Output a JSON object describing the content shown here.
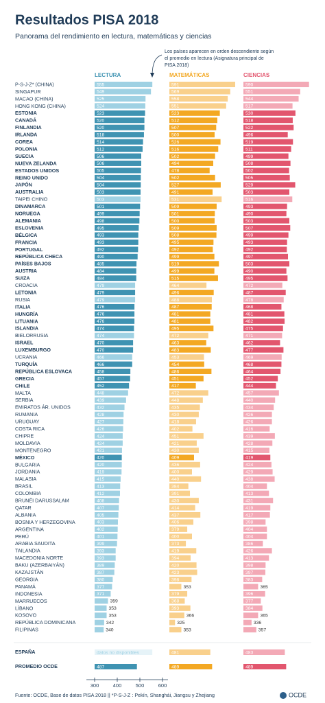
{
  "chart_data": {
    "type": "bar",
    "title": "Resultados PISA 2018",
    "subtitle": "Panorama del rendimiento en lectura, matemáticas y ciencias",
    "note": [
      "Los países aparecen en orden descendiente según",
      "el promedio en lectura (Asignatura principal de",
      "PISA 2018)"
    ],
    "categories": [
      "P-S-J-Z* (CHINA)",
      "SINGAPUR",
      "MACAO (CHINA)",
      "HONG KONG (CHINA)",
      "ESTONIA",
      "CANADÁ",
      "FINLANDIA",
      "IRLANDA",
      "COREA",
      "POLONIA",
      "SUECIA",
      "NUEVA ZELANDA",
      "ESTADOS UNIDOS",
      "REINO UNIDO",
      "JAPÓN",
      "AUSTRALIA",
      "TAIPEI CHINO",
      "DINAMARCA",
      "NORUEGA",
      "ALEMANIA",
      "ESLOVENIA",
      "BÉLGICA",
      "FRANCIA",
      "PORTUGAL",
      "REPÚBLICA CHECA",
      "PAÍSES BAJOS",
      "AUSTRIA",
      "SUIZA",
      "CROACIA",
      "LETONIA",
      "RUSIA",
      "ITALIA",
      "HUNGRÍA",
      "LITUANIA",
      "ISLANDIA",
      "BIELORRUSIA",
      "ISRAEL",
      "LUXEMBURGO",
      "UCRANIA",
      "TURQUÍA",
      "REPÚBLICA ESLOVACA",
      "GRECIA",
      "CHILE",
      "MALTA",
      "SERBIA",
      "EMIRATOS ÁR. UNIDOS",
      "RUMANIA",
      "URUGUAY",
      "COSTA RICA",
      "CHIPRE",
      "MOLDAVIA",
      "MONTENEGRO",
      "MÉXICO",
      "BULGARIA",
      "JORDANIA",
      "MALASIA",
      "BRASIL",
      "COLOMBIA",
      "BRUNÉI DARUSSALAM",
      "QATAR",
      "ALBANIA",
      "BOSNIA Y HERZEGOVINA",
      "ARGENTINA",
      "PERÚ",
      "ARABIA SAUDITA",
      "TAILANDIA",
      "MACEDONIA NORTE",
      "BAKU (AZERBAIYÁN)",
      "KAZAJSTÁN",
      "GEORGIA",
      "PANAMÁ",
      "INDONESIA",
      "MARRUECOS",
      "LÍBANO",
      "KOSOVO",
      "REPÚBLICA DOMINICANA",
      "FILIPINAS"
    ],
    "oecd": [
      false,
      false,
      false,
      false,
      true,
      true,
      true,
      true,
      true,
      true,
      true,
      true,
      true,
      true,
      true,
      true,
      false,
      true,
      true,
      true,
      true,
      true,
      true,
      true,
      true,
      true,
      true,
      true,
      false,
      true,
      false,
      true,
      true,
      true,
      true,
      false,
      true,
      true,
      false,
      true,
      true,
      true,
      true,
      false,
      false,
      false,
      false,
      false,
      false,
      false,
      false,
      false,
      true,
      false,
      false,
      false,
      false,
      false,
      false,
      false,
      false,
      false,
      false,
      false,
      false,
      false,
      false,
      false,
      false,
      false,
      false,
      false,
      false,
      false,
      false,
      false,
      false
    ],
    "series": [
      {
        "name": "LECTURA",
        "color": "#3f93b2",
        "light_color": "#9fd1e3",
        "values": [
          555,
          549,
          525,
          524,
          523,
          520,
          520,
          518,
          514,
          512,
          506,
          506,
          505,
          504,
          504,
          503,
          503,
          501,
          499,
          498,
          495,
          493,
          493,
          492,
          490,
          485,
          484,
          484,
          479,
          479,
          479,
          476,
          476,
          476,
          474,
          474,
          470,
          470,
          466,
          466,
          458,
          457,
          452,
          448,
          439,
          432,
          428,
          427,
          426,
          424,
          424,
          421,
          420,
          420,
          419,
          415,
          413,
          412,
          408,
          407,
          405,
          403,
          402,
          401,
          399,
          393,
          393,
          389,
          387,
          380,
          377,
          371,
          359,
          353,
          353,
          342,
          340
        ]
      },
      {
        "name": "MATEMÁTICAS",
        "color": "#f3a823",
        "light_color": "#f9d08c",
        "values": [
          591,
          569,
          558,
          551,
          523,
          512,
          507,
          500,
          526,
          516,
          502,
          494,
          478,
          502,
          527,
          491,
          531,
          509,
          501,
          500,
          509,
          508,
          495,
          492,
          499,
          519,
          499,
          515,
          464,
          496,
          488,
          487,
          481,
          481,
          495,
          472,
          463,
          483,
          453,
          454,
          486,
          451,
          417,
          472,
          448,
          435,
          430,
          418,
          402,
          451,
          421,
          430,
          409,
          436,
          400,
          440,
          384,
          391,
          430,
          414,
          437,
          406,
          379,
          400,
          373,
          419,
          394,
          420,
          423,
          398,
          353,
          379,
          368,
          393,
          366,
          325,
          353
        ]
      },
      {
        "name": "CIENCIAS",
        "color": "#e2566e",
        "light_color": "#f3a9b6",
        "values": [
          590,
          551,
          544,
          517,
          530,
          518,
          522,
          496,
          519,
          511,
          499,
          508,
          502,
          505,
          529,
          503,
          516,
          493,
          490,
          503,
          507,
          499,
          493,
          492,
          497,
          503,
          490,
          495,
          472,
          487,
          478,
          468,
          481,
          482,
          475,
          471,
          462,
          477,
          469,
          468,
          464,
          452,
          444,
          457,
          440,
          434,
          426,
          426,
          416,
          439,
          428,
          415,
          419,
          424,
          429,
          438,
          404,
          413,
          431,
          419,
          417,
          398,
          404,
          404,
          386,
          426,
          413,
          398,
          397,
          383,
          365,
          396,
          377,
          384,
          365,
          336,
          357
        ]
      }
    ],
    "summary_categories": [
      "ESPAÑA",
      "PROMEDIO OCDE"
    ],
    "summary_values": [
      [
        null,
        487
      ],
      [
        481,
        489
      ],
      [
        483,
        489
      ]
    ],
    "summary_value_labels": [
      [
        "datos no disponibles",
        null
      ]
    ],
    "xlim": [
      300,
      600
    ],
    "xticks": [
      300,
      400,
      500,
      600
    ],
    "footer": "Fuente: OCDE, Base de datos PISA 2018  ||  *P-S-J-Z : Pekín, Shanghái, Jiangsu y Zhejiang",
    "logo": "OCDE"
  }
}
